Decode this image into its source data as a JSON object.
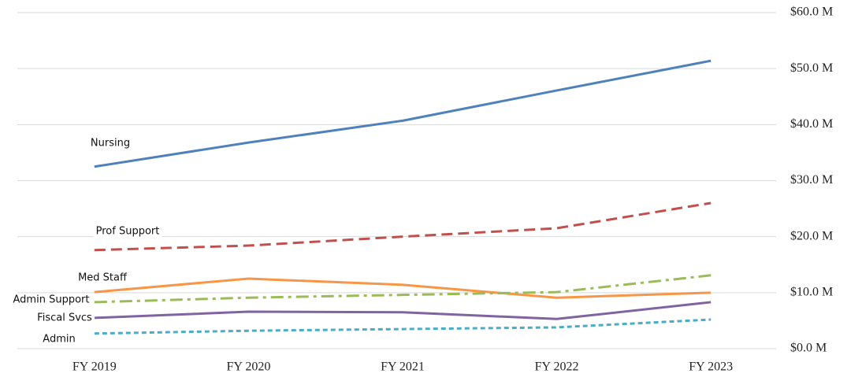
{
  "chart_data": {
    "type": "line",
    "categories": [
      "FY 2019",
      "FY 2020",
      "FY 2021",
      "FY 2022",
      "FY 2023"
    ],
    "ylim": [
      0,
      60
    ],
    "yticks": [
      {
        "value": 0,
        "label": "$0.0 M"
      },
      {
        "value": 10,
        "label": "$10.0 M"
      },
      {
        "value": 20,
        "label": "$20.0 M"
      },
      {
        "value": 30,
        "label": "$30.0 M"
      },
      {
        "value": 40,
        "label": "$40.0 M"
      },
      {
        "value": 50,
        "label": "$50.0 M"
      },
      {
        "value": 60,
        "label": "$60.0 M"
      }
    ],
    "grid": true,
    "series": [
      {
        "name": "Nursing",
        "color": "#4f81bd",
        "dash": "solid",
        "values": [
          32.5,
          36.8,
          40.7,
          46.1,
          51.4
        ]
      },
      {
        "name": "Prof Support",
        "color": "#c0504d",
        "dash": "dash",
        "values": [
          17.6,
          18.4,
          20.0,
          21.5,
          26.0
        ]
      },
      {
        "name": "Med Staff",
        "color": "#f79646",
        "dash": "solid",
        "values": [
          10.1,
          12.5,
          11.4,
          9.1,
          10.0
        ]
      },
      {
        "name": "Admin Support",
        "color": "#9bbb59",
        "dash": "dashdot",
        "values": [
          8.3,
          9.1,
          9.6,
          10.1,
          13.1
        ]
      },
      {
        "name": "Fiscal Svcs",
        "color": "#8064a2",
        "dash": "solid",
        "values": [
          5.5,
          6.6,
          6.5,
          5.3,
          8.3
        ]
      },
      {
        "name": "Admin",
        "color": "#4bacc6",
        "dash": "dot",
        "values": [
          2.7,
          3.2,
          3.5,
          3.8,
          5.2
        ]
      }
    ]
  }
}
